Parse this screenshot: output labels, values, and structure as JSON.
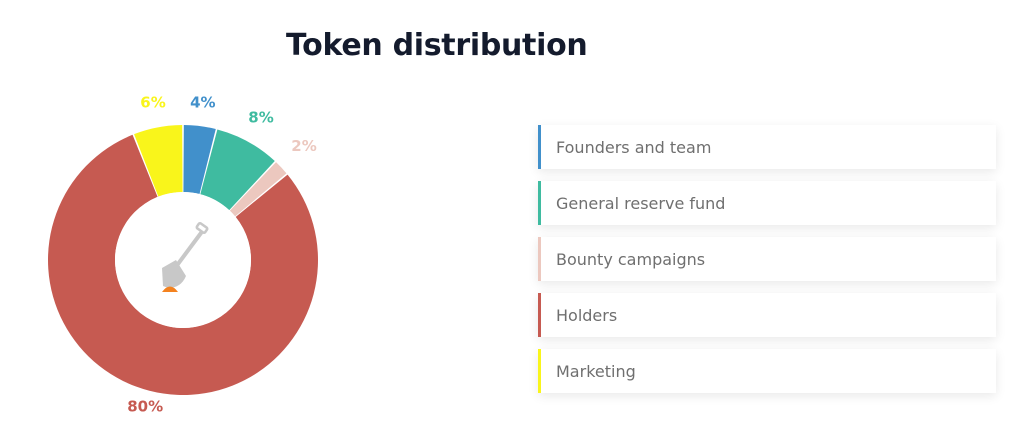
{
  "page": {
    "title": "Token distribution"
  },
  "chart_data": {
    "type": "pie",
    "slices": [
      {
        "label": "Founders and team",
        "value": 4,
        "display": "4%",
        "color": "#4190cb"
      },
      {
        "label": "General reserve fund",
        "value": 8,
        "display": "8%",
        "color": "#3fbba0"
      },
      {
        "label": "Bounty campaigns",
        "value": 2,
        "display": "2%",
        "color": "#ecc8bf"
      },
      {
        "label": "Holders",
        "value": 80,
        "display": "80%",
        "color": "#c65a51"
      },
      {
        "label": "Marketing",
        "value": 6,
        "display": "6%",
        "color": "#f9f51b"
      }
    ],
    "donut": true,
    "center_icon": "shovel-icon",
    "legend_position": "right"
  },
  "legend": {
    "items": [
      {
        "label": "Founders and team",
        "color": "#4190cb"
      },
      {
        "label": "General reserve fund",
        "color": "#3fbba0"
      },
      {
        "label": "Bounty campaigns",
        "color": "#ecc8bf"
      },
      {
        "label": "Holders",
        "color": "#c65a51"
      },
      {
        "label": "Marketing",
        "color": "#f9f51b"
      }
    ]
  }
}
